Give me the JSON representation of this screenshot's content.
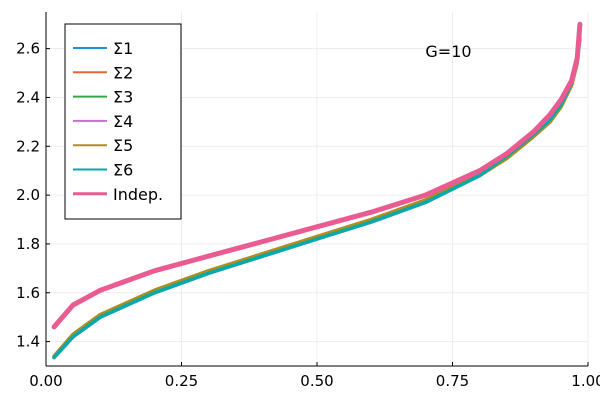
{
  "chart_data": {
    "type": "line",
    "xlim": [
      0.0,
      1.0
    ],
    "ylim": [
      1.3,
      2.75
    ],
    "xticks": [
      {
        "value": 0.0,
        "label": "0.00"
      },
      {
        "value": 0.25,
        "label": "0.25"
      },
      {
        "value": 0.5,
        "label": "0.50"
      },
      {
        "value": 0.75,
        "label": "0.75"
      },
      {
        "value": 1.0,
        "label": "1.00"
      }
    ],
    "yticks": [
      {
        "value": 1.4,
        "label": "1.4"
      },
      {
        "value": 1.6,
        "label": "1.6"
      },
      {
        "value": 1.8,
        "label": "1.8"
      },
      {
        "value": 2.0,
        "label": "2.0"
      },
      {
        "value": 2.2,
        "label": "2.2"
      },
      {
        "value": 2.4,
        "label": "2.4"
      },
      {
        "value": 2.6,
        "label": "2.6"
      }
    ],
    "grid": true,
    "legend_position": "top-left",
    "annotation": {
      "text": "G=10",
      "x": 0.7,
      "y": 2.59
    },
    "x": [
      0.015,
      0.05,
      0.1,
      0.2,
      0.3,
      0.4,
      0.5,
      0.6,
      0.7,
      0.8,
      0.85,
      0.9,
      0.93,
      0.95,
      0.97,
      0.98,
      0.985
    ],
    "series": [
      {
        "name": "Σ1",
        "color": "#1f8fd6",
        "width": 3.5,
        "values": [
          1.335,
          1.42,
          1.5,
          1.6,
          1.68,
          1.75,
          1.82,
          1.89,
          1.97,
          2.08,
          2.16,
          2.25,
          2.31,
          2.37,
          2.46,
          2.55,
          2.65
        ]
      },
      {
        "name": "Σ2",
        "color": "#e8633a",
        "width": 3.5,
        "values": [
          1.34,
          1.43,
          1.51,
          1.61,
          1.69,
          1.76,
          1.83,
          1.9,
          1.98,
          2.09,
          2.17,
          2.26,
          2.32,
          2.38,
          2.47,
          2.57,
          2.7
        ]
      },
      {
        "name": "Σ3",
        "color": "#3aa745",
        "width": 3.5,
        "values": [
          1.335,
          1.42,
          1.5,
          1.6,
          1.68,
          1.75,
          1.82,
          1.89,
          1.97,
          2.08,
          2.16,
          2.25,
          2.31,
          2.37,
          2.46,
          2.55,
          2.66
        ]
      },
      {
        "name": "Σ4",
        "color": "#c371d2",
        "width": 3.5,
        "values": [
          1.335,
          1.42,
          1.5,
          1.6,
          1.68,
          1.75,
          1.82,
          1.89,
          1.97,
          2.08,
          2.16,
          2.25,
          2.31,
          2.37,
          2.46,
          2.55,
          2.67
        ]
      },
      {
        "name": "Σ5",
        "color": "#ad8e1e",
        "width": 3.5,
        "values": [
          1.34,
          1.43,
          1.51,
          1.61,
          1.69,
          1.76,
          1.83,
          1.9,
          1.98,
          2.08,
          2.15,
          2.24,
          2.3,
          2.36,
          2.45,
          2.54,
          2.68
        ]
      },
      {
        "name": "Σ6",
        "color": "#00aaad",
        "width": 3.5,
        "values": [
          1.335,
          1.42,
          1.5,
          1.6,
          1.68,
          1.75,
          1.82,
          1.89,
          1.97,
          2.08,
          2.16,
          2.25,
          2.31,
          2.37,
          2.46,
          2.55,
          2.64
        ]
      },
      {
        "name": "Indep.",
        "color": "#ea5b92",
        "width": 5,
        "values": [
          1.46,
          1.55,
          1.61,
          1.69,
          1.75,
          1.81,
          1.87,
          1.93,
          2.0,
          2.1,
          2.17,
          2.26,
          2.33,
          2.39,
          2.47,
          2.56,
          2.7
        ]
      }
    ]
  }
}
